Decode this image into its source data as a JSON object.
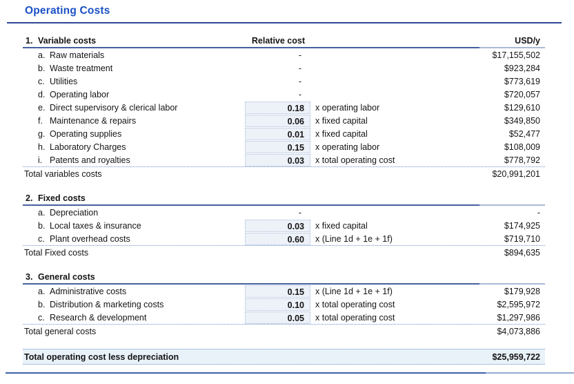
{
  "title": "Operating Costs",
  "columns": {
    "relative": "Relative cost",
    "usd": "USD/y"
  },
  "colors": {
    "accent_blue": "#1a50c5",
    "rule_blue": "#2d4796",
    "section_rule": "#44619e",
    "shaded_cell_bg": "#edf1f8",
    "grand_total_bg": "#e9f2f9",
    "dotted_border": "#6f8fc9"
  },
  "sections": [
    {
      "number": "1.",
      "title": "Variable costs",
      "rows": [
        {
          "letter": "a.",
          "label": "Raw materials",
          "rel": "-",
          "formula": "",
          "usd": "$17,155,502"
        },
        {
          "letter": "b.",
          "label": "Waste treatment",
          "rel": "-",
          "formula": "",
          "usd": "$923,284"
        },
        {
          "letter": "c.",
          "label": "Utilities",
          "rel": "-",
          "formula": "",
          "usd": "$773,619"
        },
        {
          "letter": "d.",
          "label": "Operating labor",
          "rel": "-",
          "formula": "",
          "usd": "$720,057"
        },
        {
          "letter": "e.",
          "label": "Direct supervisory & clerical labor",
          "rel": "0.18",
          "formula": "x operating labor",
          "usd": "$129,610"
        },
        {
          "letter": "f.",
          "label": "Maintenance & repairs",
          "rel": "0.06",
          "formula": "x fixed capital",
          "usd": "$349,850"
        },
        {
          "letter": "g.",
          "label": "Operating supplies",
          "rel": "0.01",
          "formula": "x fixed capital",
          "usd": "$52,477"
        },
        {
          "letter": "h.",
          "label": "Laboratory Charges",
          "rel": "0.15",
          "formula": "x operating labor",
          "usd": "$108,009"
        },
        {
          "letter": "i.",
          "label": "Patents and royalties",
          "rel": "0.03",
          "formula": "x total operating cost",
          "usd": "$778,792"
        }
      ],
      "total_label": "Total variables costs",
      "total_value": "$20,991,201"
    },
    {
      "number": "2.",
      "title": "Fixed costs",
      "rows": [
        {
          "letter": "a.",
          "label": "Depreciation",
          "rel": "-",
          "formula": "",
          "usd": "-"
        },
        {
          "letter": "b.",
          "label": "Local taxes & insurance",
          "rel": "0.03",
          "formula": "x fixed capital",
          "usd": "$174,925"
        },
        {
          "letter": "c.",
          "label": "Plant overhead costs",
          "rel": "0.60",
          "formula": "x (Line 1d + 1e + 1f)",
          "usd": "$719,710"
        }
      ],
      "total_label": "Total Fixed costs",
      "total_value": "$894,635"
    },
    {
      "number": "3.",
      "title": "General costs",
      "rows": [
        {
          "letter": "a.",
          "label": "Administrative costs",
          "rel": "0.15",
          "formula": "x (Line 1d + 1e + 1f)",
          "usd": "$179,928"
        },
        {
          "letter": "b.",
          "label": "Distribution & marketing costs",
          "rel": "0.10",
          "formula": "x total operating cost",
          "usd": "$2,595,972"
        },
        {
          "letter": "c.",
          "label": "Research & development",
          "rel": "0.05",
          "formula": "x total operating cost",
          "usd": "$1,297,986"
        }
      ],
      "total_label": "Total general costs",
      "total_value": "$4,073,886"
    }
  ],
  "grand_total": {
    "label": "Total operating cost less depreciation",
    "value": "$25,959,722"
  }
}
